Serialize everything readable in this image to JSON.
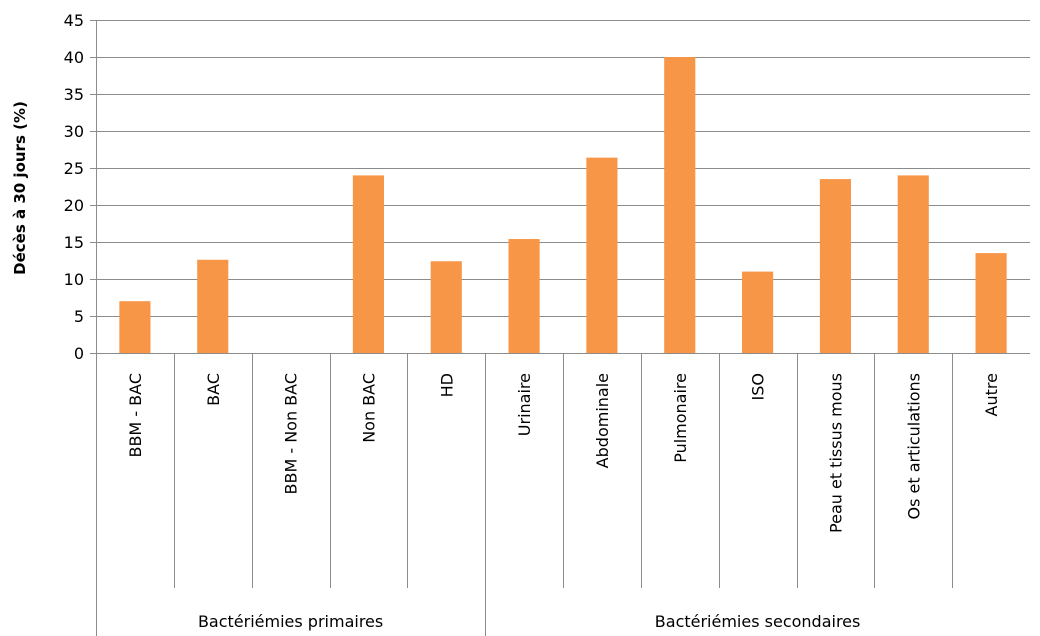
{
  "chart_data": {
    "type": "bar",
    "ylabel": "Décès à 30 jours (%)",
    "xlabel": "",
    "ylim": [
      0,
      45
    ],
    "yticks": [
      0,
      5,
      10,
      15,
      20,
      25,
      30,
      35,
      40,
      45
    ],
    "grid": true,
    "legend": "none",
    "bar_color": "#f79646",
    "categories": [
      "BBM - BAC",
      "BAC",
      "BBM - Non BAC",
      "Non BAC",
      "HD",
      "Urinaire",
      "Abdominale",
      "Pulmonaire",
      "ISO",
      "Peau et tissus mous",
      "Os et articulations",
      "Autre"
    ],
    "values": [
      7.0,
      12.6,
      0,
      24.0,
      12.4,
      15.4,
      26.4,
      40.0,
      11.0,
      23.5,
      24.0,
      13.5
    ],
    "groups": [
      {
        "label": "Bactériémies primaires",
        "count": 5
      },
      {
        "label": "Bactériémies secondaires",
        "count": 7
      }
    ]
  }
}
